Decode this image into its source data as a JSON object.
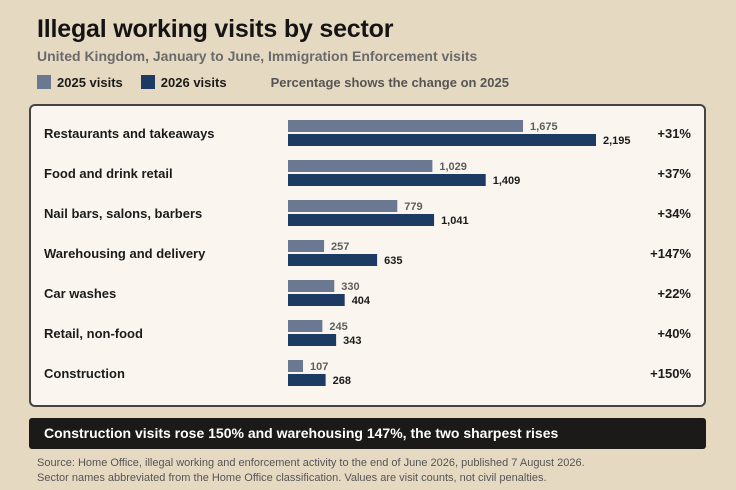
{
  "title": "Illegal working visits by sector",
  "subtitle": "United Kingdom, January to June, Immigration Enforcement visits",
  "legend": {
    "series_2025": "2025 visits",
    "series_2026": "2026 visits",
    "note": "Percentage shows the change on 2025"
  },
  "colors": {
    "s2025": "#6b7892",
    "s2026": "#1d3a63"
  },
  "chart_data": {
    "type": "bar",
    "orientation": "horizontal",
    "categories": [
      "Restaurants and takeaways",
      "Food and drink retail",
      "Nail bars, salons, barbers",
      "Warehousing and delivery",
      "Car washes",
      "Retail, non-food",
      "Construction"
    ],
    "series": [
      {
        "name": "2025 visits",
        "values": [
          1675,
          1029,
          779,
          257,
          330,
          245,
          107
        ],
        "labels": [
          "1,675",
          "1,029",
          "779",
          "257",
          "330",
          "245",
          "107"
        ]
      },
      {
        "name": "2026 visits",
        "values": [
          2195,
          1409,
          1041,
          635,
          404,
          343,
          268
        ],
        "labels": [
          "2,195",
          "1,409",
          "1,041",
          "635",
          "404",
          "343",
          "268"
        ]
      }
    ],
    "changes": [
      "+31%",
      "+37%",
      "+34%",
      "+147%",
      "+22%",
      "+40%",
      "+150%"
    ],
    "xlim": [
      0,
      2195
    ]
  },
  "banner": "Construction visits rose 150% and warehousing 147%, the two sharpest rises",
  "source": {
    "line1": "Source: Home Office, illegal working and enforcement activity to the end of June 2026, published 7 August 2026.",
    "line2": "Sector names abbreviated from the Home Office classification. Values are visit counts, not civil penalties."
  }
}
